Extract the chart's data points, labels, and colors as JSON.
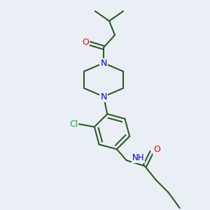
{
  "background_color": "#eaeff5",
  "bond_color": "#2d5a27",
  "N_color": "#0000ee",
  "O_color": "#ee0000",
  "Cl_color": "#22aa22",
  "line_width": 1.5,
  "figsize": [
    3.0,
    3.0
  ],
  "dpi": 100,
  "xlim": [
    0,
    300
  ],
  "ylim": [
    0,
    300
  ]
}
